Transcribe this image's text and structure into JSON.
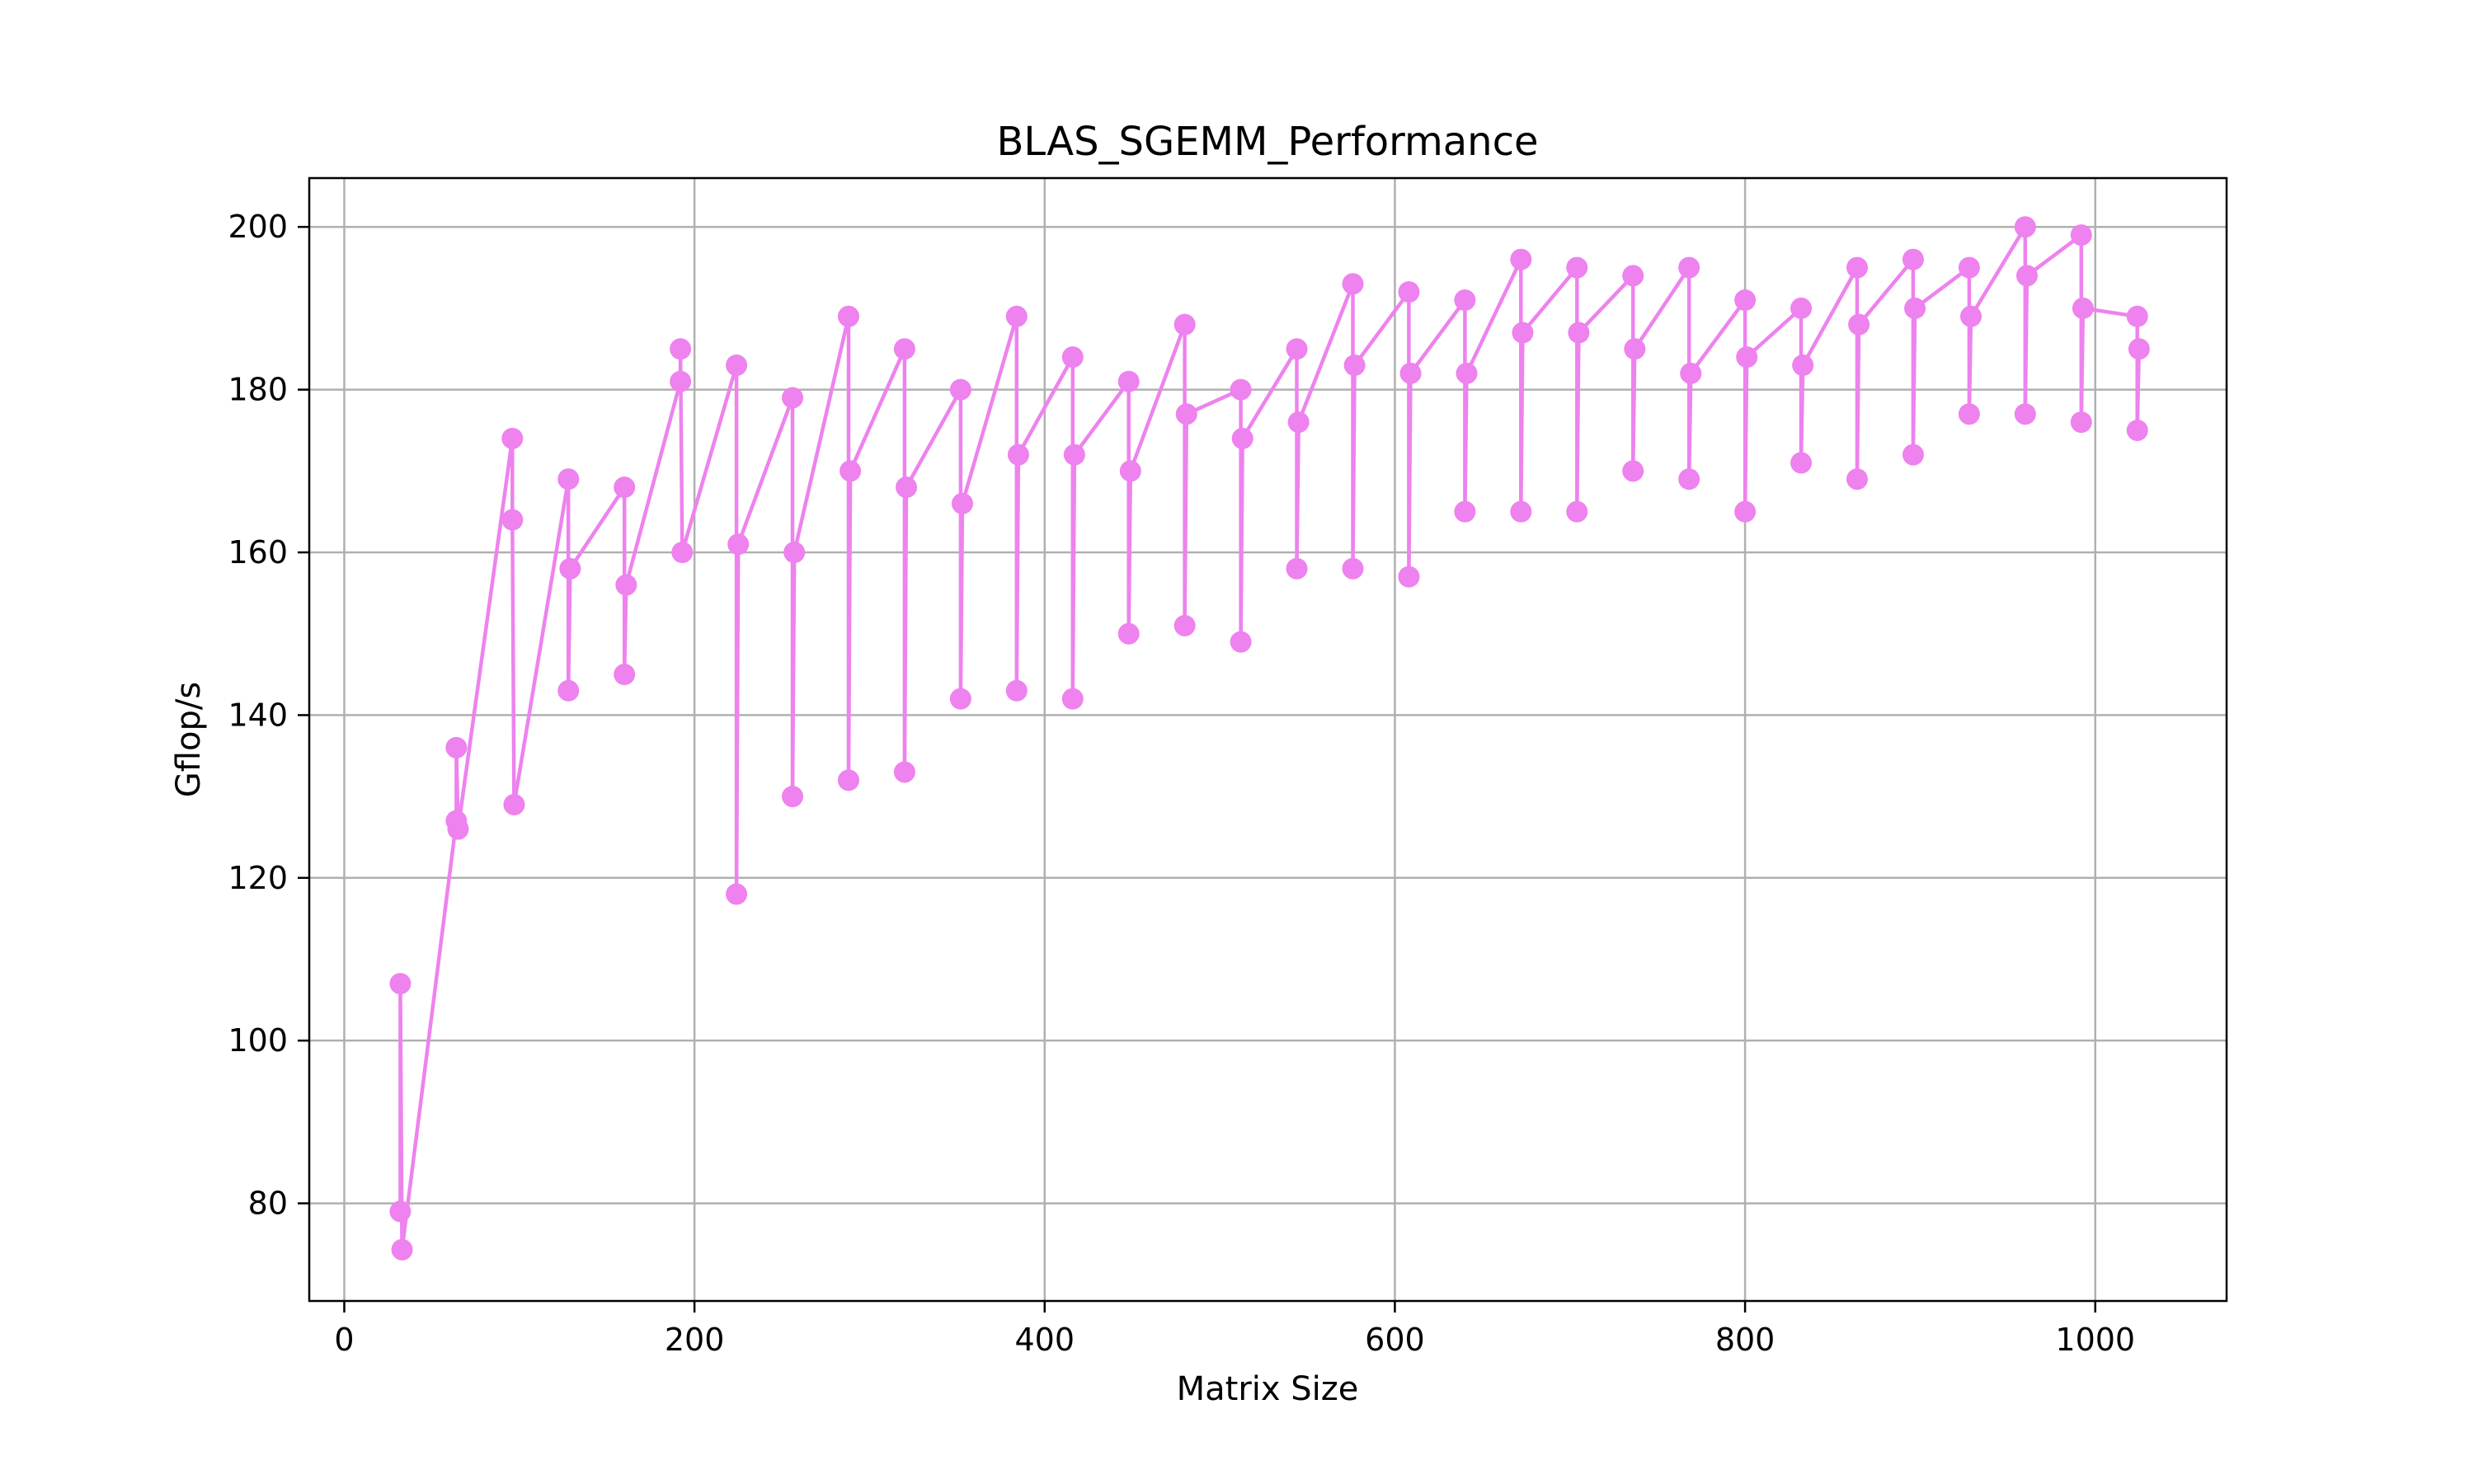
{
  "chart_data": {
    "type": "line",
    "title": "BLAS_SGEMM_Performance",
    "xlabel": "Matrix Size",
    "ylabel": "Gflop/s",
    "xlim": [
      -20,
      1075
    ],
    "ylim": [
      68,
      206
    ],
    "xticks": [
      0,
      200,
      400,
      600,
      800,
      1000
    ],
    "yticks": [
      80,
      100,
      120,
      140,
      160,
      180,
      200
    ],
    "grid": true,
    "color": "#ee82ee",
    "marker": "circle",
    "series": [
      {
        "x": [
          32,
          32,
          33,
          64,
          64,
          65,
          96,
          96,
          97,
          128,
          128,
          129,
          160,
          160,
          161,
          192,
          192,
          193,
          224,
          224,
          225,
          256,
          256,
          257,
          288,
          288,
          289,
          320,
          320,
          321,
          352,
          352,
          353,
          384,
          384,
          385,
          416,
          416,
          417,
          448,
          448,
          449,
          480,
          480,
          481,
          512,
          512,
          513,
          544,
          544,
          545,
          576,
          576,
          577,
          608,
          608,
          609,
          640,
          640,
          641,
          672,
          672,
          673,
          704,
          704,
          705,
          736,
          736,
          737,
          768,
          768,
          769,
          800,
          800,
          801,
          832,
          832,
          833,
          864,
          864,
          865,
          896,
          896,
          897,
          928,
          928,
          929,
          960,
          960,
          961,
          992,
          992,
          993,
          1024,
          1024,
          1025
        ],
        "y": [
          79,
          107,
          74.3,
          127,
          136,
          126,
          174,
          164,
          129,
          169,
          143,
          158,
          168,
          145,
          156,
          181,
          185,
          160,
          183,
          118,
          161,
          179,
          130,
          160,
          189,
          132,
          170,
          185,
          133,
          168,
          180,
          142,
          166,
          189,
          143,
          172,
          184,
          142,
          172,
          181,
          150,
          170,
          188,
          151,
          177,
          180,
          149,
          174,
          185,
          158,
          176,
          193,
          158,
          183,
          192,
          157,
          182,
          191,
          165,
          182,
          196,
          165,
          187,
          195,
          165,
          187,
          194,
          170,
          185,
          195,
          169,
          182,
          191,
          165,
          184,
          190,
          171,
          183,
          195,
          169,
          188,
          196,
          172,
          190,
          195,
          177,
          189,
          200,
          177,
          194,
          199,
          176,
          190,
          189,
          175,
          185
        ]
      }
    ]
  }
}
